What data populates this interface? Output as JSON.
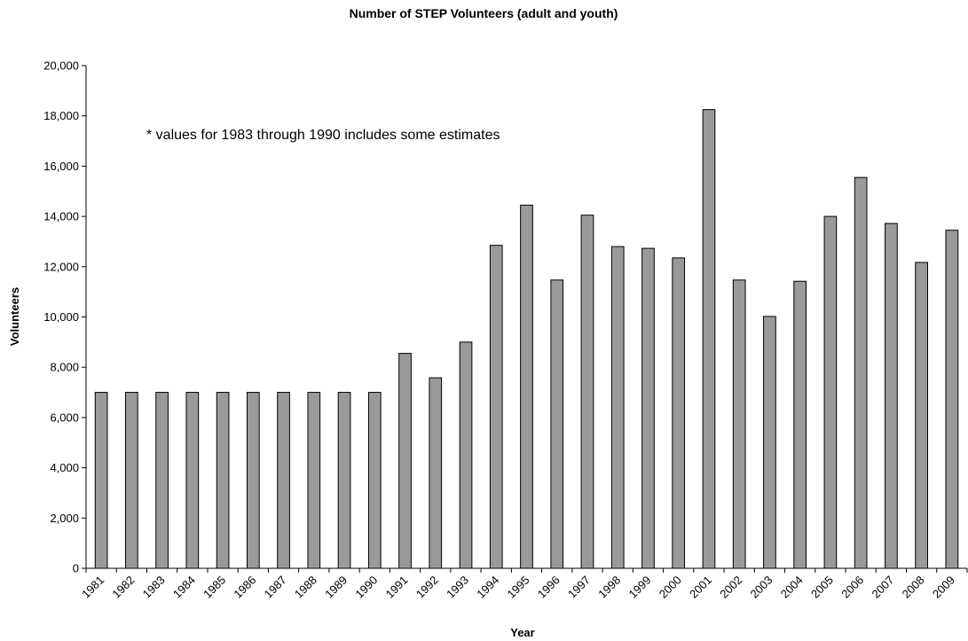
{
  "chart_data": {
    "type": "bar",
    "title": "Number of STEP Volunteers (adult and youth)",
    "xlabel": "Year",
    "ylabel": "Volunteers",
    "ylim": [
      0,
      20000
    ],
    "yticks": [
      0,
      2000,
      4000,
      6000,
      8000,
      10000,
      12000,
      14000,
      16000,
      18000,
      20000
    ],
    "ytick_labels": [
      "0",
      "2,000",
      "4,000",
      "6,000",
      "8,000",
      "10,000",
      "12,000",
      "14,000",
      "16,000",
      "18,000",
      "20,000"
    ],
    "categories": [
      "1981",
      "1982",
      "1983",
      "1984",
      "1985",
      "1986",
      "1987",
      "1988",
      "1989",
      "1990",
      "1991",
      "1992",
      "1993",
      "1994",
      "1995",
      "1996",
      "1997",
      "1998",
      "1999",
      "2000",
      "2001",
      "2002",
      "2003",
      "2004",
      "2005",
      "2006",
      "2007",
      "2008",
      "2009"
    ],
    "values": [
      7000,
      7000,
      7000,
      7000,
      7000,
      7000,
      7000,
      7000,
      7000,
      7000,
      8550,
      7580,
      9000,
      12850,
      14450,
      11470,
      14050,
      12800,
      12730,
      12350,
      18250,
      11470,
      10020,
      11420,
      14000,
      15550,
      13720,
      12170,
      13450
    ],
    "annotation": "* values for 1983 through 1990 includes some estimates",
    "grid": false,
    "legend": "none",
    "bar_color": "#9a9a9a"
  }
}
